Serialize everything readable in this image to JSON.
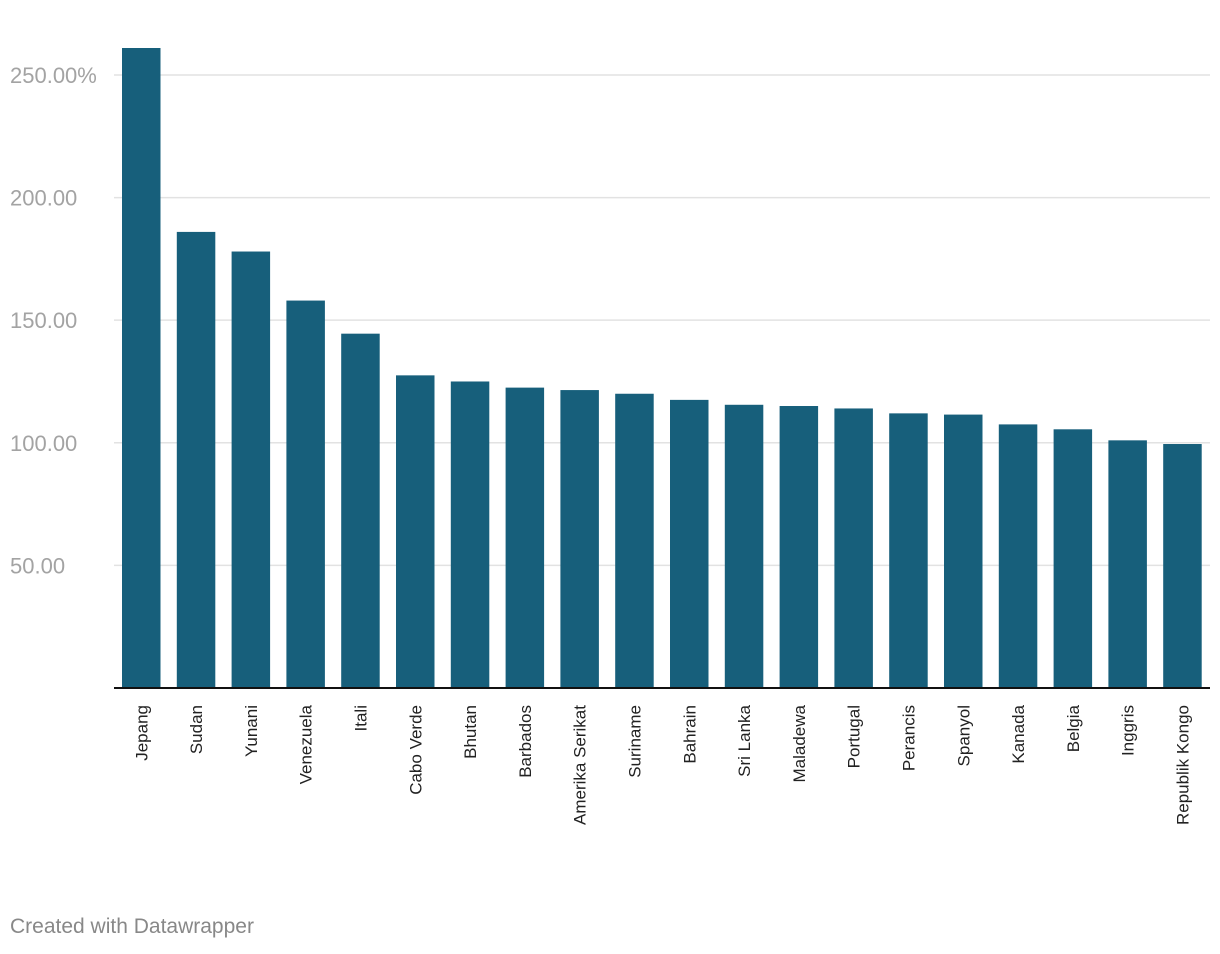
{
  "chart_data": {
    "type": "bar",
    "categories": [
      "Jepang",
      "Sudan",
      "Yunani",
      "Venezuela",
      "Itali",
      "Cabo Verde",
      "Bhutan",
      "Barbados",
      "Amerika Serikat",
      "Suriname",
      "Bahrain",
      "Sri Lanka",
      "Maladewa",
      "Portugal",
      "Perancis",
      "Spanyol",
      "Kanada",
      "Belgia",
      "Inggris",
      "Republik Kongo"
    ],
    "values": [
      261,
      186,
      178,
      158,
      144.5,
      127.5,
      125,
      122.5,
      121.5,
      120,
      117.5,
      115.5,
      115,
      114,
      112,
      111.5,
      107.5,
      105.5,
      101,
      99.5
    ],
    "yticks": [
      {
        "value": 50,
        "label": "50.00"
      },
      {
        "value": 100,
        "label": "100.00"
      },
      {
        "value": 150,
        "label": "150.00"
      },
      {
        "value": 200,
        "label": "200.00"
      },
      {
        "value": 250,
        "label": "250.00%"
      }
    ],
    "ylim": [
      0,
      261
    ],
    "grid": true,
    "bar_color": "#175f7b",
    "title": "",
    "xlabel": "",
    "ylabel": ""
  },
  "footer": {
    "credit": "Created with Datawrapper"
  }
}
